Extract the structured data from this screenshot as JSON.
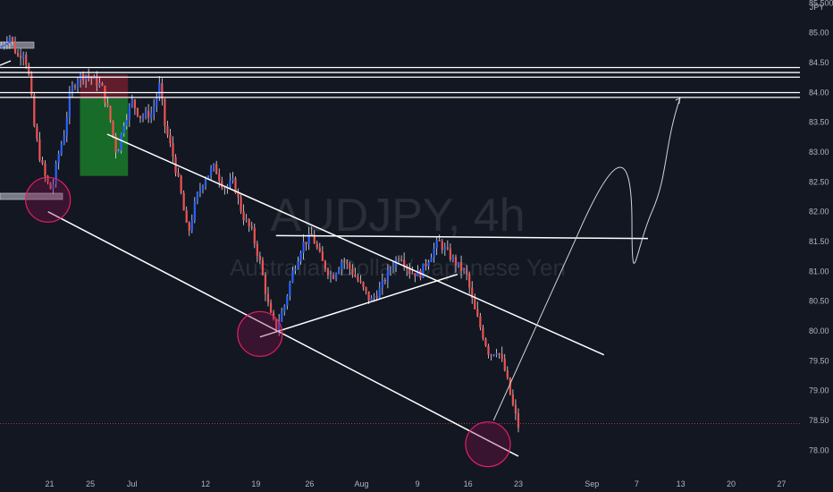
{
  "chart_data": {
    "type": "candlestick",
    "symbol": "AUDJPY",
    "interval": "4h",
    "watermark_title": "AUDJPY, 4h",
    "watermark_subtitle": "Australian Dollar / Japanese Yen",
    "currency_label": "JPY",
    "ylim": [
      77.6,
      85.55
    ],
    "y_ticks": [
      "85.500",
      "85.00",
      "84.50",
      "84.00",
      "83.50",
      "83.00",
      "82.50",
      "82.00",
      "81.50",
      "81.00",
      "80.50",
      "80.00",
      "79.50",
      "79.00",
      "78.50",
      "78.00"
    ],
    "x_ticks": [
      "21",
      "25",
      "Jul",
      "12",
      "19",
      "26",
      "Aug",
      "9",
      "16",
      "23",
      "Sep",
      "7",
      "13",
      "20",
      "27"
    ],
    "horizontal_levels": [
      {
        "label": "84.417",
        "value": 84.417,
        "style": "light"
      },
      {
        "label": "84.334",
        "value": 84.334,
        "style": "light"
      },
      {
        "label": "84.256",
        "value": 84.256,
        "style": "red"
      },
      {
        "label": "83.998",
        "value": 83.998,
        "style": "light"
      },
      {
        "label": "83.917",
        "value": 83.917,
        "style": "gray"
      }
    ],
    "current_price": {
      "label": "78.448",
      "value": 78.448
    },
    "alert_price": {
      "label": "82.634",
      "value": 82.634
    },
    "price_path": [
      [
        0,
        84.75
      ],
      [
        0.012,
        84.95
      ],
      [
        0.022,
        84.6
      ],
      [
        0.03,
        84.7
      ],
      [
        0.037,
        84.2
      ],
      [
        0.043,
        83.4
      ],
      [
        0.05,
        82.9
      ],
      [
        0.058,
        82.5
      ],
      [
        0.065,
        82.35
      ],
      [
        0.072,
        82.9
      ],
      [
        0.08,
        83.3
      ],
      [
        0.088,
        84.0
      ],
      [
        0.097,
        84.25
      ],
      [
        0.107,
        84.3
      ],
      [
        0.118,
        84.2
      ],
      [
        0.127,
        84.1
      ],
      [
        0.137,
        83.6
      ],
      [
        0.146,
        82.95
      ],
      [
        0.155,
        83.5
      ],
      [
        0.165,
        83.85
      ],
      [
        0.175,
        83.6
      ],
      [
        0.19,
        83.65
      ],
      [
        0.2,
        84.15
      ],
      [
        0.205,
        83.5
      ],
      [
        0.215,
        83.0
      ],
      [
        0.225,
        82.4
      ],
      [
        0.235,
        81.6
      ],
      [
        0.245,
        82.2
      ],
      [
        0.255,
        82.55
      ],
      [
        0.268,
        82.75
      ],
      [
        0.28,
        82.4
      ],
      [
        0.292,
        82.5
      ],
      [
        0.303,
        81.95
      ],
      [
        0.315,
        81.65
      ],
      [
        0.326,
        81.1
      ],
      [
        0.337,
        80.3
      ],
      [
        0.345,
        80.05
      ],
      [
        0.355,
        80.4
      ],
      [
        0.366,
        81.0
      ],
      [
        0.378,
        81.45
      ],
      [
        0.39,
        81.6
      ],
      [
        0.403,
        81.15
      ],
      [
        0.415,
        80.9
      ],
      [
        0.428,
        81.2
      ],
      [
        0.44,
        81.0
      ],
      [
        0.452,
        80.75
      ],
      [
        0.463,
        80.5
      ],
      [
        0.475,
        80.7
      ],
      [
        0.488,
        81.05
      ],
      [
        0.5,
        81.3
      ],
      [
        0.512,
        81.0
      ],
      [
        0.525,
        80.95
      ],
      [
        0.537,
        81.25
      ],
      [
        0.548,
        81.5
      ],
      [
        0.56,
        81.3
      ],
      [
        0.572,
        81.1
      ],
      [
        0.583,
        80.95
      ],
      [
        0.592,
        80.4
      ],
      [
        0.602,
        80.0
      ],
      [
        0.612,
        79.6
      ],
      [
        0.622,
        79.7
      ],
      [
        0.632,
        79.3
      ],
      [
        0.64,
        78.8
      ],
      [
        0.648,
        78.4
      ]
    ],
    "annotations": {
      "channel_upper": [
        [
          0.134,
          83.3
        ],
        [
          0.755,
          79.6
        ]
      ],
      "channel_lower": [
        [
          0.06,
          82.0
        ],
        [
          0.648,
          77.9
        ]
      ],
      "triangle_top": [
        [
          0.345,
          81.6
        ],
        [
          0.81,
          81.55
        ]
      ],
      "triangle_bottom": [
        [
          0.325,
          79.9
        ],
        [
          0.572,
          80.95
        ]
      ],
      "projection_curve": [
        [
          0.617,
          78.5
        ],
        [
          0.72,
          81.55
        ],
        [
          0.77,
          82.2
        ],
        [
          0.795,
          81.6
        ],
        [
          0.85,
          83.9
        ]
      ],
      "circles": [
        [
          0.06,
          82.2
        ],
        [
          0.325,
          79.95
        ],
        [
          0.61,
          78.1
        ]
      ],
      "trade_box_profit": [
        [
          0.1,
          83.9
        ],
        [
          0.16,
          82.6
        ]
      ],
      "trade_box_loss": [
        [
          0.1,
          84.3
        ],
        [
          0.16,
          83.9
        ]
      ]
    }
  }
}
